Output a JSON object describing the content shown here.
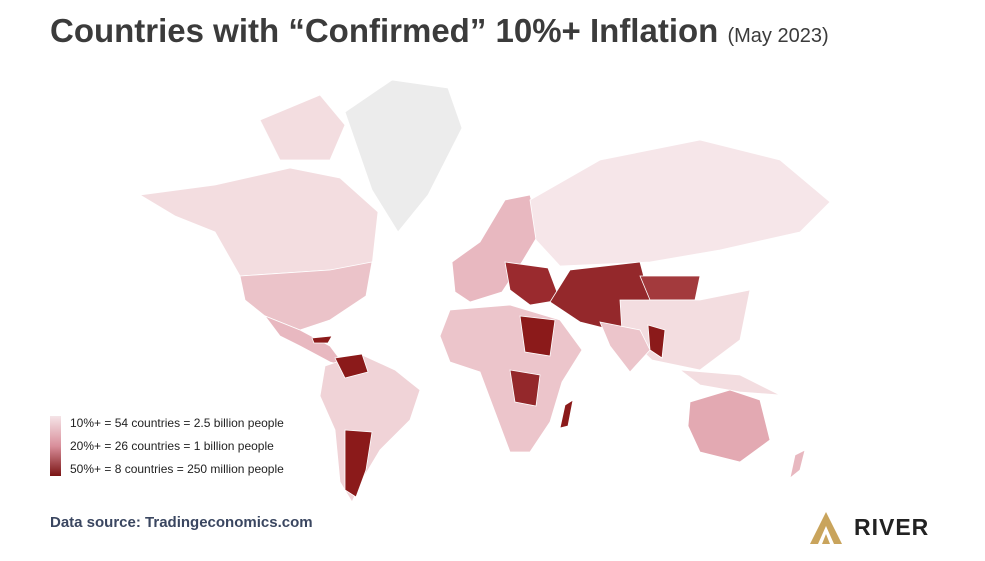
{
  "header": {
    "title": "Countries with “Confirmed” 10%+ Inflation",
    "subtitle": "(May 2023)"
  },
  "legend": {
    "items": [
      "10%+ = 54 countries = 2.5 billion people",
      "20%+ = 26 countries = 1 billion people",
      "50%+ = 8 countries = 250 million people"
    ]
  },
  "footer": {
    "source": "Data source: Tradingeconomics.com",
    "brand": "RIVER"
  }
}
